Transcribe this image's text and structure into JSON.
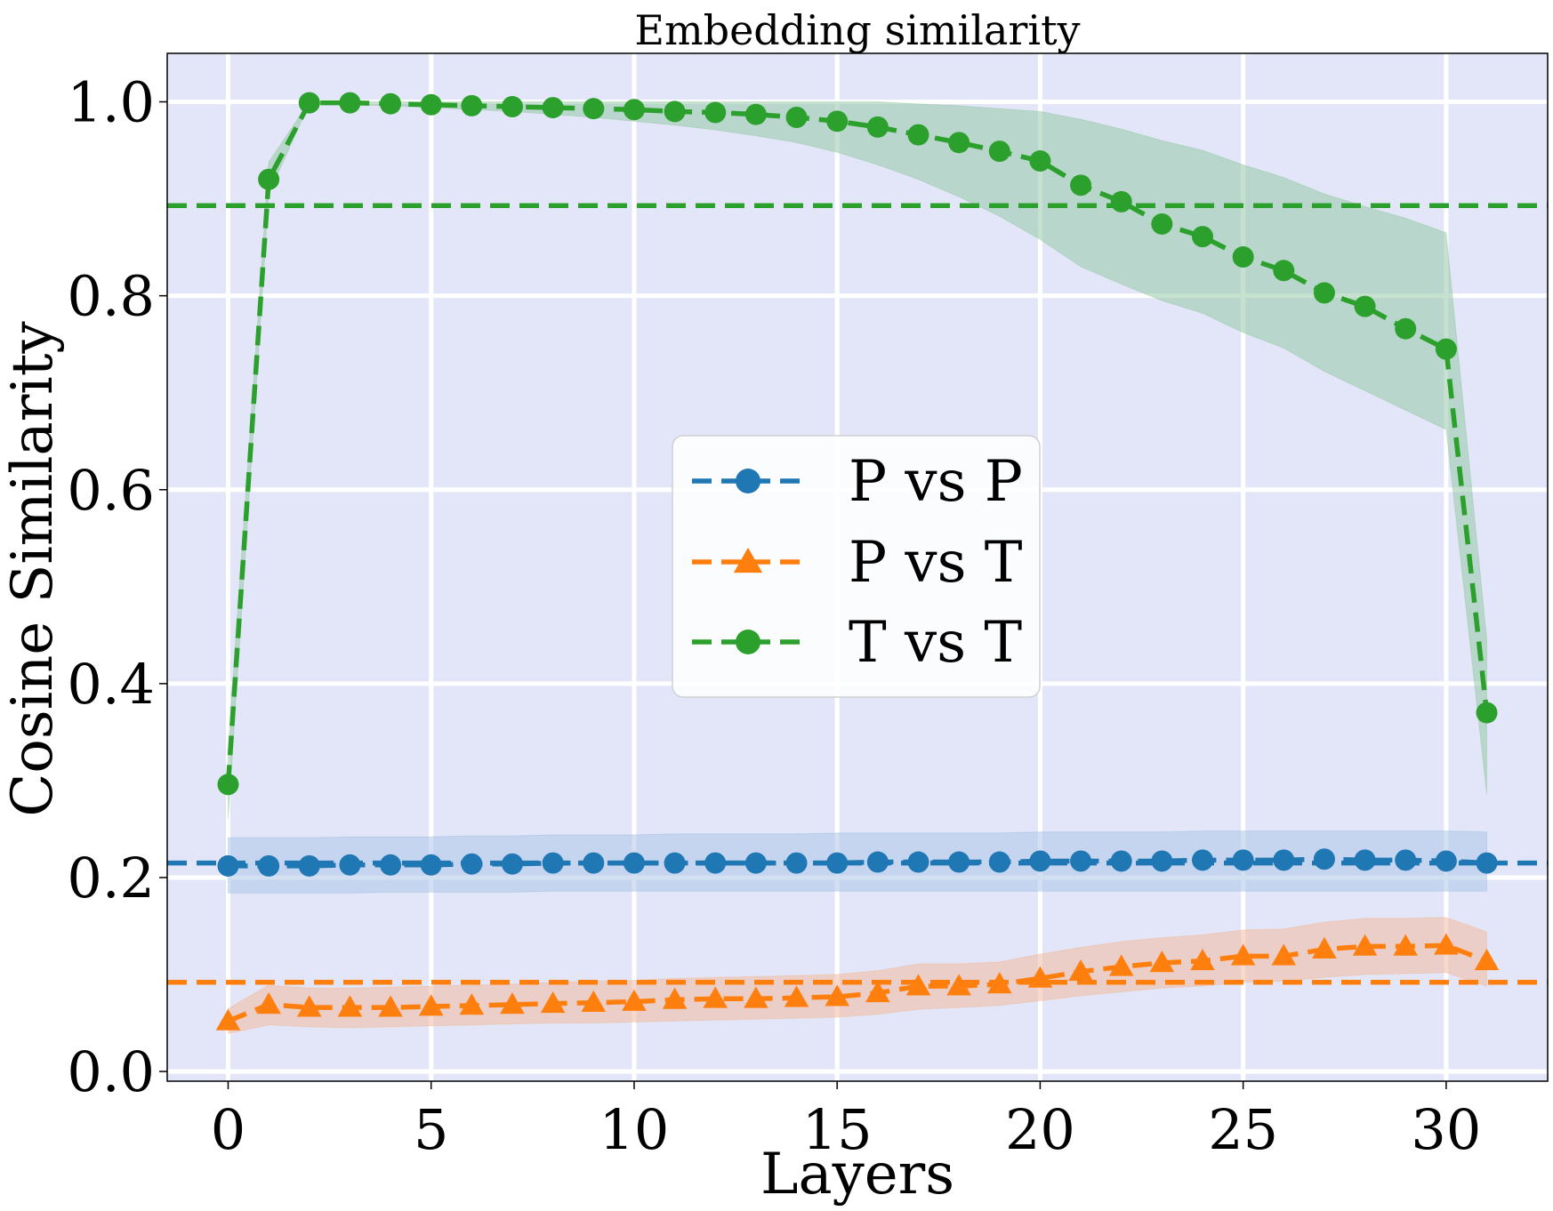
{
  "chart_data": {
    "type": "line",
    "title": "Embedding similarity",
    "xlabel": "Layers",
    "ylabel": "Cosine Similarity",
    "xlim": [
      -1.5,
      32.5
    ],
    "ylim": [
      -0.01,
      1.05
    ],
    "xticks": [
      0,
      5,
      10,
      15,
      20,
      25,
      30
    ],
    "xtick_labels": [
      "0",
      "5",
      "10",
      "15",
      "20",
      "25",
      "30"
    ],
    "yticks": [
      0.0,
      0.2,
      0.4,
      0.6,
      0.8,
      1.0
    ],
    "ytick_labels": [
      "0.0",
      "0.2",
      "0.4",
      "0.6",
      "0.8",
      "1.0"
    ],
    "grid": true,
    "background_color": "#e3e6f8",
    "legend_position": "center",
    "x": [
      0,
      1,
      2,
      3,
      4,
      5,
      6,
      7,
      8,
      9,
      10,
      11,
      12,
      13,
      14,
      15,
      16,
      17,
      18,
      19,
      20,
      21,
      22,
      23,
      24,
      25,
      26,
      27,
      28,
      29,
      30,
      31
    ],
    "series": [
      {
        "name": "P vs P",
        "marker": "circle",
        "color": "#1f77b4",
        "band_color": "#aec7e8",
        "values": [
          0.212,
          0.212,
          0.212,
          0.213,
          0.213,
          0.213,
          0.214,
          0.214,
          0.215,
          0.215,
          0.215,
          0.215,
          0.215,
          0.215,
          0.215,
          0.215,
          0.216,
          0.216,
          0.216,
          0.216,
          0.217,
          0.217,
          0.217,
          0.217,
          0.218,
          0.218,
          0.218,
          0.219,
          0.218,
          0.218,
          0.217,
          0.215
        ],
        "band_lower": [
          0.184,
          0.184,
          0.184,
          0.184,
          0.185,
          0.185,
          0.185,
          0.185,
          0.186,
          0.186,
          0.186,
          0.186,
          0.186,
          0.186,
          0.186,
          0.186,
          0.186,
          0.186,
          0.186,
          0.186,
          0.186,
          0.186,
          0.186,
          0.186,
          0.186,
          0.186,
          0.186,
          0.186,
          0.186,
          0.186,
          0.186,
          0.186
        ],
        "band_upper": [
          0.241,
          0.241,
          0.241,
          0.242,
          0.242,
          0.242,
          0.243,
          0.243,
          0.244,
          0.244,
          0.244,
          0.245,
          0.245,
          0.245,
          0.245,
          0.246,
          0.246,
          0.246,
          0.246,
          0.246,
          0.247,
          0.247,
          0.247,
          0.247,
          0.248,
          0.248,
          0.248,
          0.248,
          0.248,
          0.248,
          0.248,
          0.247
        ],
        "mean_line": 0.215
      },
      {
        "name": "P vs T",
        "marker": "triangle",
        "color": "#ff7f0e",
        "band_color": "#f2b9a0",
        "values": [
          0.052,
          0.069,
          0.066,
          0.066,
          0.066,
          0.067,
          0.068,
          0.069,
          0.07,
          0.071,
          0.072,
          0.074,
          0.075,
          0.075,
          0.076,
          0.077,
          0.081,
          0.088,
          0.088,
          0.09,
          0.096,
          0.103,
          0.108,
          0.112,
          0.114,
          0.119,
          0.119,
          0.126,
          0.129,
          0.129,
          0.13,
          0.114
        ],
        "band_lower": [
          0.039,
          0.048,
          0.046,
          0.045,
          0.046,
          0.047,
          0.048,
          0.049,
          0.05,
          0.05,
          0.051,
          0.052,
          0.053,
          0.054,
          0.055,
          0.056,
          0.059,
          0.064,
          0.066,
          0.068,
          0.073,
          0.078,
          0.082,
          0.086,
          0.088,
          0.092,
          0.093,
          0.097,
          0.1,
          0.101,
          0.102,
          0.088
        ],
        "band_upper": [
          0.065,
          0.089,
          0.086,
          0.086,
          0.087,
          0.088,
          0.089,
          0.09,
          0.092,
          0.093,
          0.094,
          0.096,
          0.097,
          0.098,
          0.099,
          0.1,
          0.104,
          0.111,
          0.111,
          0.113,
          0.121,
          0.128,
          0.134,
          0.138,
          0.141,
          0.146,
          0.147,
          0.154,
          0.158,
          0.158,
          0.159,
          0.144
        ],
        "mean_line": 0.092
      },
      {
        "name": "T vs T",
        "marker": "circle",
        "color": "#2ca02c",
        "band_color": "#98c9a8",
        "values": [
          0.296,
          0.92,
          0.999,
          0.999,
          0.998,
          0.997,
          0.996,
          0.995,
          0.994,
          0.993,
          0.992,
          0.99,
          0.989,
          0.987,
          0.984,
          0.98,
          0.974,
          0.966,
          0.958,
          0.949,
          0.939,
          0.914,
          0.897,
          0.874,
          0.861,
          0.84,
          0.826,
          0.803,
          0.789,
          0.766,
          0.745,
          0.37
        ],
        "band_lower": [
          0.26,
          0.905,
          0.998,
          0.997,
          0.996,
          0.994,
          0.992,
          0.99,
          0.987,
          0.984,
          0.98,
          0.976,
          0.971,
          0.965,
          0.958,
          0.948,
          0.935,
          0.92,
          0.902,
          0.882,
          0.858,
          0.83,
          0.812,
          0.795,
          0.782,
          0.762,
          0.746,
          0.722,
          0.702,
          0.682,
          0.662,
          0.286
        ],
        "band_upper": [
          0.332,
          0.938,
          1.0,
          1.0,
          1.0,
          1.0,
          1.0,
          1.0,
          1.0,
          1.0,
          1.0,
          1.0,
          1.0,
          1.0,
          1.0,
          1.0,
          1.0,
          0.998,
          0.996,
          0.993,
          0.99,
          0.982,
          0.972,
          0.96,
          0.95,
          0.935,
          0.922,
          0.905,
          0.892,
          0.88,
          0.865,
          0.446
        ],
        "mean_line": 0.893
      }
    ]
  }
}
